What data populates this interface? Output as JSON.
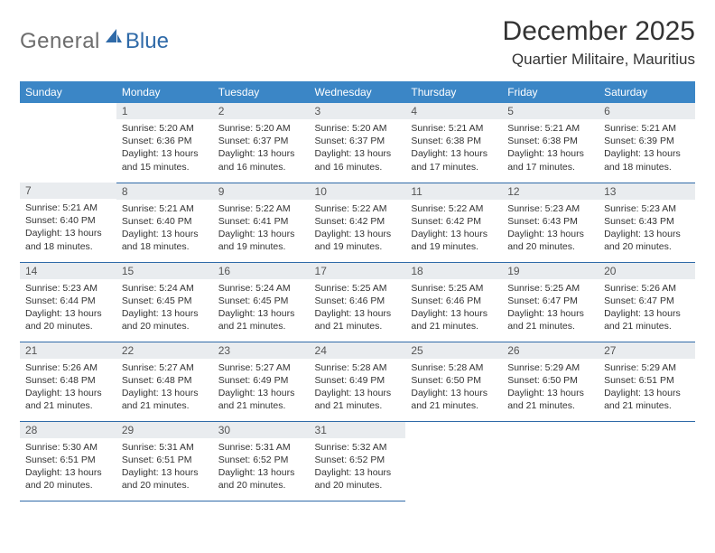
{
  "logo": {
    "text1": "General",
    "text2": "Blue"
  },
  "title": "December 2025",
  "location": "Quartier Militaire, Mauritius",
  "colors": {
    "header_bg": "#3b86c6",
    "header_text": "#ffffff",
    "daynum_bg": "#e9ecef",
    "border": "#2f6aa8",
    "logo_gray": "#6d6d6d",
    "logo_blue": "#2f6aa8"
  },
  "weekdays": [
    "Sunday",
    "Monday",
    "Tuesday",
    "Wednesday",
    "Thursday",
    "Friday",
    "Saturday"
  ],
  "labels": {
    "sunrise": "Sunrise:",
    "sunset": "Sunset:",
    "daylight": "Daylight:"
  },
  "grid": [
    [
      null,
      {
        "n": "1",
        "sr": "5:20 AM",
        "ss": "6:36 PM",
        "dl": "13 hours and 15 minutes."
      },
      {
        "n": "2",
        "sr": "5:20 AM",
        "ss": "6:37 PM",
        "dl": "13 hours and 16 minutes."
      },
      {
        "n": "3",
        "sr": "5:20 AM",
        "ss": "6:37 PM",
        "dl": "13 hours and 16 minutes."
      },
      {
        "n": "4",
        "sr": "5:21 AM",
        "ss": "6:38 PM",
        "dl": "13 hours and 17 minutes."
      },
      {
        "n": "5",
        "sr": "5:21 AM",
        "ss": "6:38 PM",
        "dl": "13 hours and 17 minutes."
      },
      {
        "n": "6",
        "sr": "5:21 AM",
        "ss": "6:39 PM",
        "dl": "13 hours and 18 minutes."
      }
    ],
    [
      {
        "n": "7",
        "sr": "5:21 AM",
        "ss": "6:40 PM",
        "dl": "13 hours and 18 minutes."
      },
      {
        "n": "8",
        "sr": "5:21 AM",
        "ss": "6:40 PM",
        "dl": "13 hours and 18 minutes."
      },
      {
        "n": "9",
        "sr": "5:22 AM",
        "ss": "6:41 PM",
        "dl": "13 hours and 19 minutes."
      },
      {
        "n": "10",
        "sr": "5:22 AM",
        "ss": "6:42 PM",
        "dl": "13 hours and 19 minutes."
      },
      {
        "n": "11",
        "sr": "5:22 AM",
        "ss": "6:42 PM",
        "dl": "13 hours and 19 minutes."
      },
      {
        "n": "12",
        "sr": "5:23 AM",
        "ss": "6:43 PM",
        "dl": "13 hours and 20 minutes."
      },
      {
        "n": "13",
        "sr": "5:23 AM",
        "ss": "6:43 PM",
        "dl": "13 hours and 20 minutes."
      }
    ],
    [
      {
        "n": "14",
        "sr": "5:23 AM",
        "ss": "6:44 PM",
        "dl": "13 hours and 20 minutes."
      },
      {
        "n": "15",
        "sr": "5:24 AM",
        "ss": "6:45 PM",
        "dl": "13 hours and 20 minutes."
      },
      {
        "n": "16",
        "sr": "5:24 AM",
        "ss": "6:45 PM",
        "dl": "13 hours and 21 minutes."
      },
      {
        "n": "17",
        "sr": "5:25 AM",
        "ss": "6:46 PM",
        "dl": "13 hours and 21 minutes."
      },
      {
        "n": "18",
        "sr": "5:25 AM",
        "ss": "6:46 PM",
        "dl": "13 hours and 21 minutes."
      },
      {
        "n": "19",
        "sr": "5:25 AM",
        "ss": "6:47 PM",
        "dl": "13 hours and 21 minutes."
      },
      {
        "n": "20",
        "sr": "5:26 AM",
        "ss": "6:47 PM",
        "dl": "13 hours and 21 minutes."
      }
    ],
    [
      {
        "n": "21",
        "sr": "5:26 AM",
        "ss": "6:48 PM",
        "dl": "13 hours and 21 minutes."
      },
      {
        "n": "22",
        "sr": "5:27 AM",
        "ss": "6:48 PM",
        "dl": "13 hours and 21 minutes."
      },
      {
        "n": "23",
        "sr": "5:27 AM",
        "ss": "6:49 PM",
        "dl": "13 hours and 21 minutes."
      },
      {
        "n": "24",
        "sr": "5:28 AM",
        "ss": "6:49 PM",
        "dl": "13 hours and 21 minutes."
      },
      {
        "n": "25",
        "sr": "5:28 AM",
        "ss": "6:50 PM",
        "dl": "13 hours and 21 minutes."
      },
      {
        "n": "26",
        "sr": "5:29 AM",
        "ss": "6:50 PM",
        "dl": "13 hours and 21 minutes."
      },
      {
        "n": "27",
        "sr": "5:29 AM",
        "ss": "6:51 PM",
        "dl": "13 hours and 21 minutes."
      }
    ],
    [
      {
        "n": "28",
        "sr": "5:30 AM",
        "ss": "6:51 PM",
        "dl": "13 hours and 20 minutes."
      },
      {
        "n": "29",
        "sr": "5:31 AM",
        "ss": "6:51 PM",
        "dl": "13 hours and 20 minutes."
      },
      {
        "n": "30",
        "sr": "5:31 AM",
        "ss": "6:52 PM",
        "dl": "13 hours and 20 minutes."
      },
      {
        "n": "31",
        "sr": "5:32 AM",
        "ss": "6:52 PM",
        "dl": "13 hours and 20 minutes."
      },
      null,
      null,
      null
    ]
  ]
}
